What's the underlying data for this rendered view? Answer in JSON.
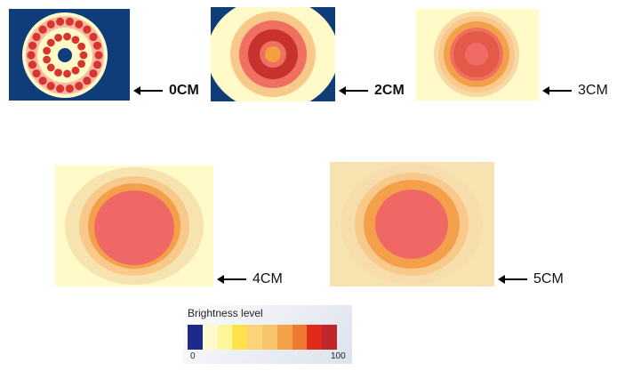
{
  "panels": [
    {
      "label": "0CM",
      "bold": true
    },
    {
      "label": "2CM",
      "bold": true
    },
    {
      "label": "3CM",
      "bold": false
    },
    {
      "label": "4CM",
      "bold": false
    },
    {
      "label": "5CM",
      "bold": false
    }
  ],
  "legend": {
    "title": "Brightness level",
    "min_label": "0",
    "max_label": "100",
    "colors": [
      "#1c2a8a",
      "#fffacd",
      "#fff59a",
      "#ffe24a",
      "#fbd37a",
      "#f8c56a",
      "#f4a24a",
      "#ee7a32",
      "#e02b1a",
      "#c0262a"
    ]
  },
  "colors": {
    "background_blue": "#0f3d7a",
    "pale_yellow": "#fffac8",
    "cream": "#f6e3b0",
    "light_orange": "#f8c98a",
    "orange": "#f4a04a",
    "red_orange": "#ef7060",
    "dark_red": "#c8322e",
    "center_orange": "#f5a040"
  }
}
